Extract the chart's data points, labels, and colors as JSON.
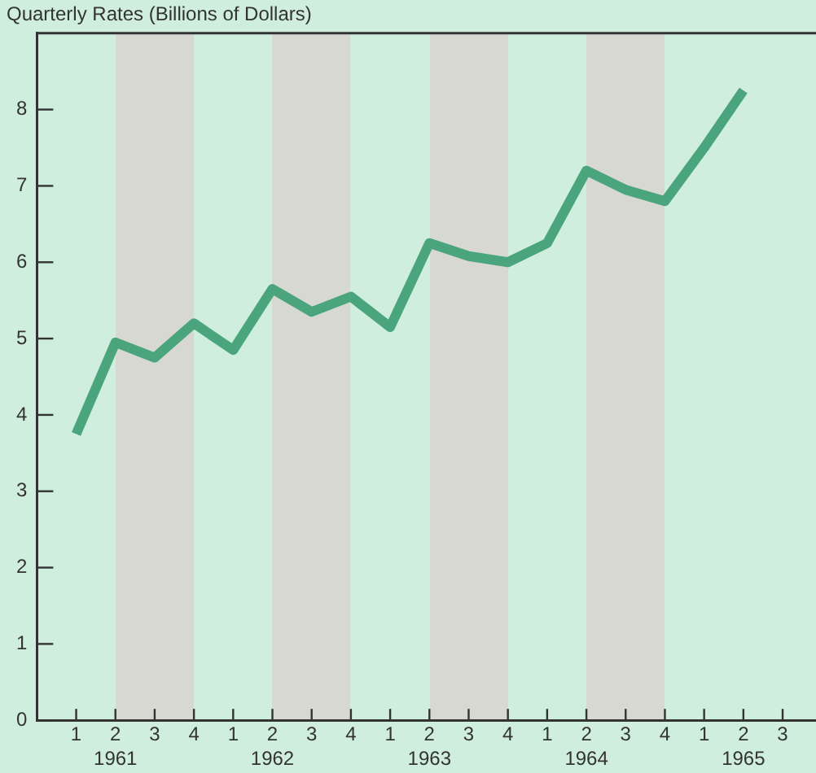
{
  "chart_data": {
    "type": "line",
    "title": "Quarterly Rates (Billions of Dollars)",
    "categories": [
      "1",
      "2",
      "3",
      "4",
      "1",
      "2",
      "3",
      "4",
      "1",
      "2",
      "3",
      "4",
      "1",
      "2",
      "3",
      "4",
      "1",
      "2",
      "3"
    ],
    "series": [
      {
        "color": "#4aa57c",
        "values": [
          3.75,
          4.95,
          4.75,
          5.2,
          4.85,
          5.65,
          5.35,
          5.55,
          5.15,
          6.25,
          6.08,
          6.0,
          6.25,
          7.2,
          6.95,
          6.8,
          7.5,
          8.25,
          null
        ]
      }
    ],
    "ylim": [
      0,
      9
    ],
    "yticks": [
      0,
      1,
      2,
      3,
      4,
      5,
      6,
      7,
      8
    ],
    "annotations": [
      "1961",
      "1962",
      "1963",
      "1964",
      "1965"
    ],
    "grid": false,
    "legend": false,
    "marker": "none",
    "line_style": "solid"
  }
}
